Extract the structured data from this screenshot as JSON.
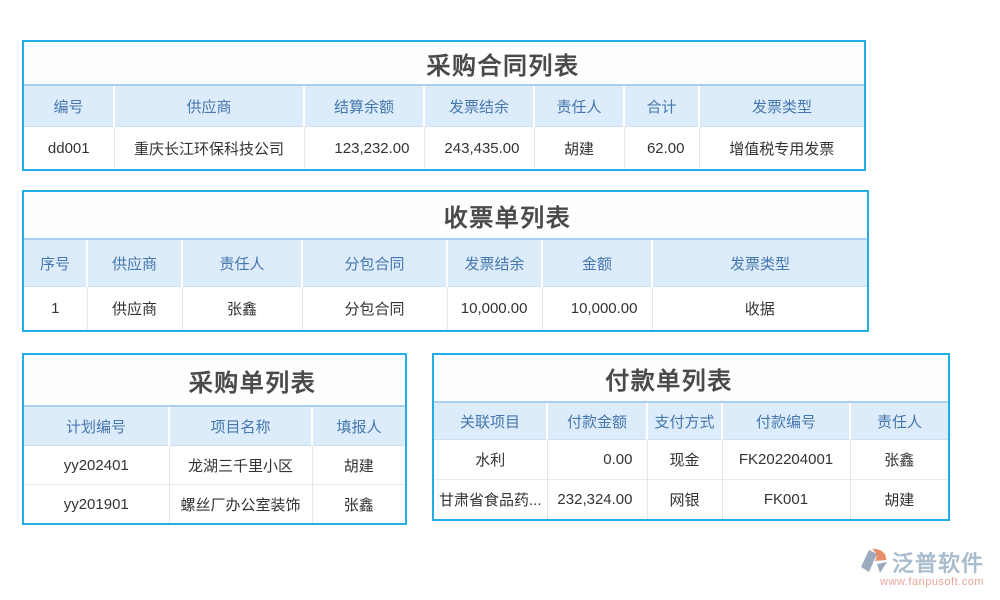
{
  "colors": {
    "accent_border": "#20aee5",
    "header_background": "#ddecfa",
    "header_text": "#4677ae",
    "title_text": "#4a4a4a",
    "logo_text": "#a6bacc",
    "logo_url": "#e7a093"
  },
  "tables": [
    {
      "title": "采购合同列表",
      "columns": [
        {
          "label": "编号",
          "align": "center"
        },
        {
          "label": "供应商",
          "align": "center"
        },
        {
          "label": "结算余额",
          "align": "center"
        },
        {
          "label": "发票结余",
          "align": "center"
        },
        {
          "label": "责任人",
          "align": "center"
        },
        {
          "label": "合计",
          "align": "center"
        },
        {
          "label": "发票类型",
          "align": "center"
        }
      ],
      "cell_aligns": [
        "center",
        "center",
        "right",
        "right",
        "center",
        "right",
        "center"
      ],
      "rows": [
        [
          "dd001",
          "重庆长江环保科技公司",
          "123,232.00",
          "243,435.00",
          "胡建",
          "62.00",
          "增值税专用发票"
        ]
      ]
    },
    {
      "title": "收票单列表",
      "columns": [
        {
          "label": "序号",
          "align": "center"
        },
        {
          "label": "供应商",
          "align": "center"
        },
        {
          "label": "责任人",
          "align": "center"
        },
        {
          "label": "分包合同",
          "align": "center"
        },
        {
          "label": "发票结余",
          "align": "center"
        },
        {
          "label": "金额",
          "align": "center"
        },
        {
          "label": "发票类型",
          "align": "center"
        }
      ],
      "cell_aligns": [
        "center",
        "center",
        "center",
        "center",
        "right",
        "right",
        "center"
      ],
      "rows": [
        [
          "1",
          "供应商",
          "张鑫",
          "分包合同",
          "10,000.00",
          "10,000.00",
          "收据"
        ]
      ]
    },
    {
      "title": "采购单列表",
      "columns": [
        {
          "label": "计划编号",
          "align": "center"
        },
        {
          "label": "项目名称",
          "align": "center"
        },
        {
          "label": "填报人",
          "align": "center"
        }
      ],
      "cell_aligns": [
        "center",
        "center",
        "center"
      ],
      "rows": [
        [
          "yy202401",
          "龙湖三千里小区",
          "胡建"
        ],
        [
          "yy201901",
          "螺丝厂办公室装饰",
          "张鑫"
        ]
      ]
    },
    {
      "title": "付款单列表",
      "columns": [
        {
          "label": "关联项目",
          "align": "center"
        },
        {
          "label": "付款金额",
          "align": "center"
        },
        {
          "label": "支付方式",
          "align": "center"
        },
        {
          "label": "付款编号",
          "align": "center"
        },
        {
          "label": "责任人",
          "align": "center"
        }
      ],
      "cell_aligns": [
        "center",
        "right",
        "center",
        "center",
        "center"
      ],
      "rows": [
        [
          "水利",
          "0.00",
          "现金",
          "FK202204001",
          "张鑫"
        ],
        [
          "甘肃省食品药...",
          "232,324.00",
          "网银",
          "FK001",
          "胡建"
        ]
      ]
    }
  ],
  "logo": {
    "name": "泛普软件",
    "url": "www.fanpusoft.com"
  }
}
